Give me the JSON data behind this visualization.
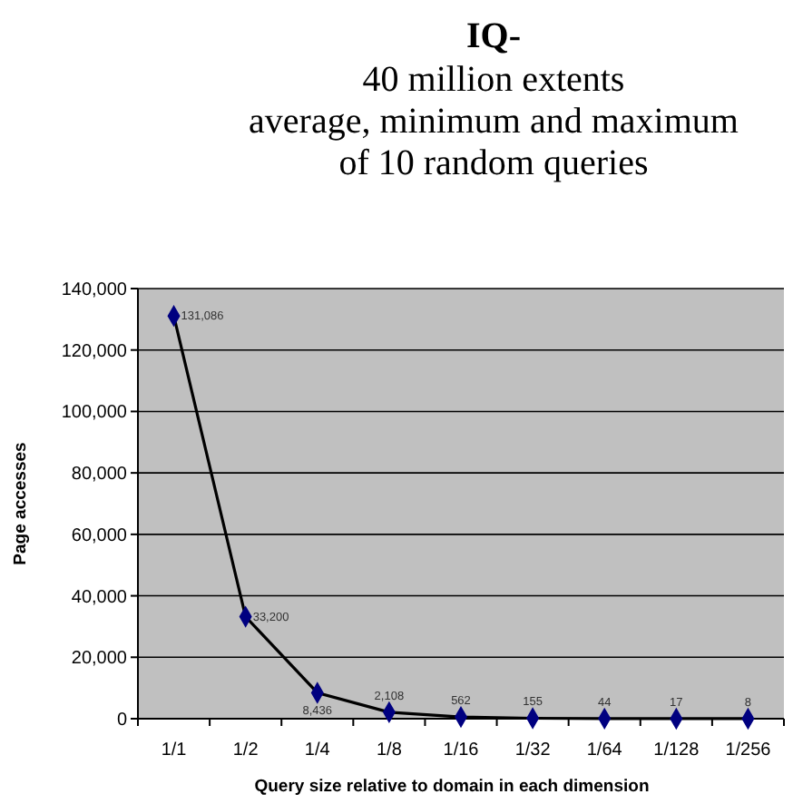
{
  "chart_data": {
    "type": "line",
    "title": "IQ-",
    "subtitle": "40 million extents\naverage, minimum and maximum\nof 10 random queries",
    "xlabel": "Query size relative to domain in each dimension",
    "ylabel": "Page accesses",
    "categories": [
      "1/1",
      "1/2",
      "1/4",
      "1/8",
      "1/16",
      "1/32",
      "1/64",
      "1/128",
      "1/256"
    ],
    "series": [
      {
        "color": "#000080",
        "values": [
          131086,
          33200,
          8436,
          2108,
          562,
          155,
          44,
          17,
          8
        ],
        "value_labels": [
          "131,086",
          "33,200",
          "8,436",
          "2,108",
          "562",
          "155",
          "44",
          "17",
          "8"
        ]
      }
    ],
    "ylim": [
      0,
      140000
    ],
    "yticks": [
      {
        "value": 0,
        "label": "0"
      },
      {
        "value": 20000,
        "label": "20,000"
      },
      {
        "value": 40000,
        "label": "40,000"
      },
      {
        "value": 60000,
        "label": "60,000"
      },
      {
        "value": 80000,
        "label": "80,000"
      },
      {
        "value": 100000,
        "label": "100,000"
      },
      {
        "value": 120000,
        "label": "120,000"
      },
      {
        "value": 140000,
        "label": "140,000"
      }
    ],
    "grid": "y",
    "marker": "diamond",
    "line_style": "solid"
  }
}
